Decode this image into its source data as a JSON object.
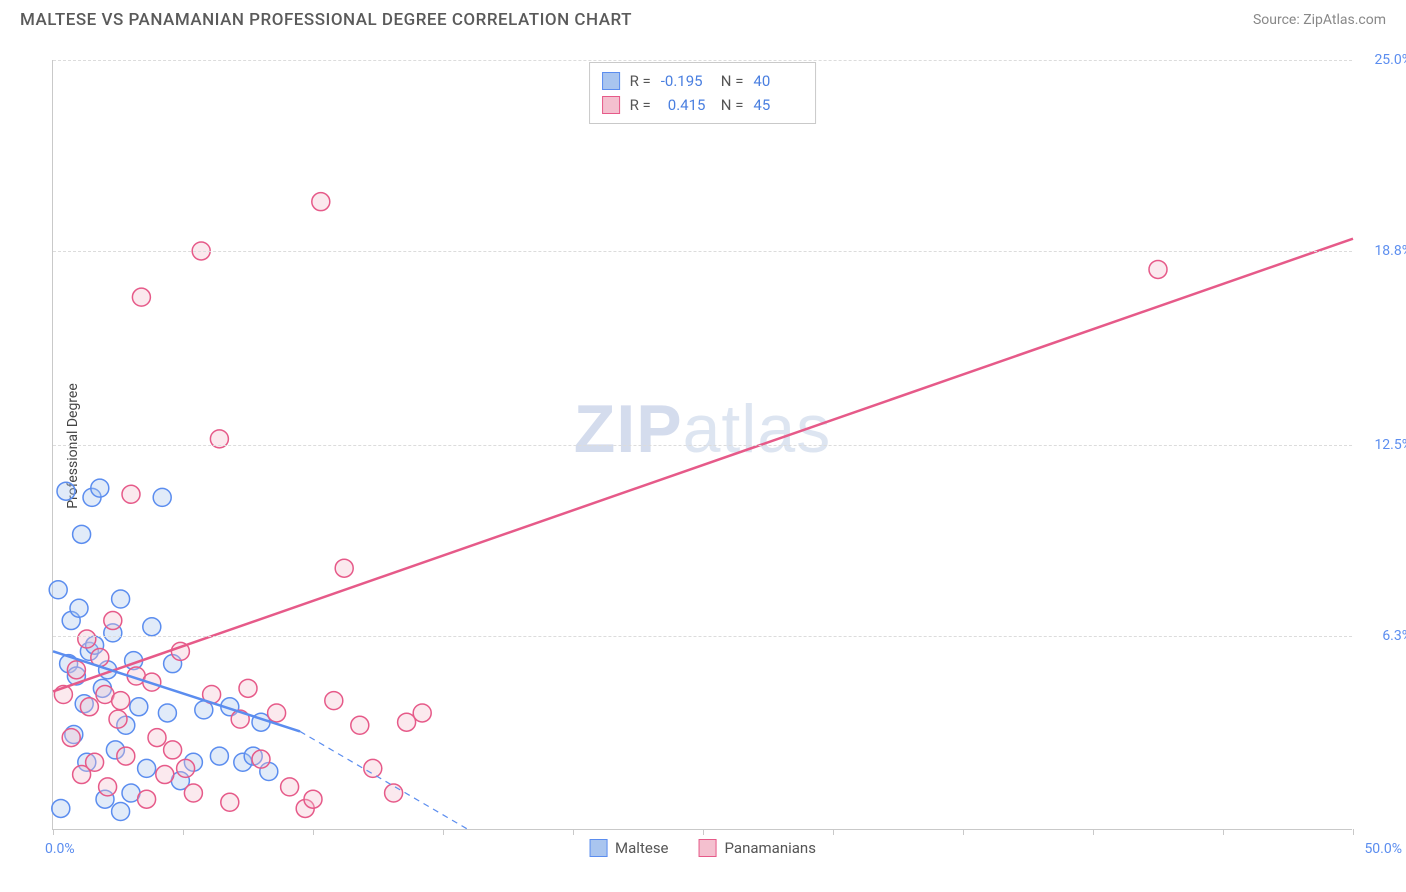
{
  "header": {
    "title": "MALTESE VS PANAMANIAN PROFESSIONAL DEGREE CORRELATION CHART",
    "source": "Source: ZipAtlas.com"
  },
  "chart": {
    "type": "scatter",
    "ylabel": "Professional Degree",
    "xlim": [
      0,
      50
    ],
    "ylim": [
      0,
      25
    ],
    "xtick_step": 5,
    "yticks": [
      6.3,
      12.5,
      18.8,
      25.0
    ],
    "ytick_labels": [
      "6.3%",
      "12.5%",
      "18.8%",
      "25.0%"
    ],
    "x_origin_label": "0.0%",
    "x_max_label": "50.0%",
    "grid_color": "#dcdcdc",
    "background_color": "#ffffff",
    "axis_color": "#c9c9c9",
    "tick_label_color": "#5b8def",
    "title_fontsize": 17,
    "label_fontsize": 14,
    "marker_radius": 9,
    "marker_stroke_width": 1.5,
    "marker_fill_opacity": 0.35,
    "trend_line_width": 2.5,
    "series": {
      "maltese": {
        "label": "Maltese",
        "fill": "#a9c5ef",
        "stroke": "#5b8def",
        "points": [
          [
            0.2,
            7.8
          ],
          [
            0.3,
            0.7
          ],
          [
            0.5,
            11.0
          ],
          [
            0.6,
            5.4
          ],
          [
            0.7,
            6.8
          ],
          [
            0.8,
            3.1
          ],
          [
            0.9,
            5.0
          ],
          [
            1.0,
            7.2
          ],
          [
            1.1,
            9.6
          ],
          [
            1.2,
            4.1
          ],
          [
            1.3,
            2.2
          ],
          [
            1.4,
            5.8
          ],
          [
            1.5,
            10.8
          ],
          [
            1.6,
            6.0
          ],
          [
            1.8,
            11.1
          ],
          [
            1.9,
            4.6
          ],
          [
            2.0,
            1.0
          ],
          [
            2.1,
            5.2
          ],
          [
            2.3,
            6.4
          ],
          [
            2.4,
            2.6
          ],
          [
            2.6,
            7.5
          ],
          [
            2.6,
            0.6
          ],
          [
            2.8,
            3.4
          ],
          [
            3.0,
            1.2
          ],
          [
            3.1,
            5.5
          ],
          [
            3.3,
            4.0
          ],
          [
            3.6,
            2.0
          ],
          [
            3.8,
            6.6
          ],
          [
            4.2,
            10.8
          ],
          [
            4.4,
            3.8
          ],
          [
            4.6,
            5.4
          ],
          [
            4.9,
            1.6
          ],
          [
            5.4,
            2.2
          ],
          [
            5.8,
            3.9
          ],
          [
            6.4,
            2.4
          ],
          [
            6.8,
            4.0
          ],
          [
            7.3,
            2.2
          ],
          [
            7.7,
            2.4
          ],
          [
            8.0,
            3.5
          ],
          [
            8.3,
            1.9
          ]
        ],
        "trend": {
          "x1": 0,
          "y1": 5.8,
          "x2": 9.5,
          "y2": 3.2
        },
        "extrapolate": {
          "x1": 9.5,
          "y1": 3.2,
          "x2": 16.0,
          "y2": 0.0
        },
        "dash": "6,5"
      },
      "panamanians": {
        "label": "Panamanians",
        "fill": "#f4c0cf",
        "stroke": "#e65a89",
        "points": [
          [
            0.4,
            4.4
          ],
          [
            0.7,
            3.0
          ],
          [
            0.9,
            5.2
          ],
          [
            1.1,
            1.8
          ],
          [
            1.3,
            6.2
          ],
          [
            1.4,
            4.0
          ],
          [
            1.6,
            2.2
          ],
          [
            1.8,
            5.6
          ],
          [
            2.0,
            4.4
          ],
          [
            2.1,
            1.4
          ],
          [
            2.3,
            6.8
          ],
          [
            2.5,
            3.6
          ],
          [
            2.6,
            4.2
          ],
          [
            2.8,
            2.4
          ],
          [
            3.0,
            10.9
          ],
          [
            3.2,
            5.0
          ],
          [
            3.4,
            17.3
          ],
          [
            3.6,
            1.0
          ],
          [
            3.8,
            4.8
          ],
          [
            4.0,
            3.0
          ],
          [
            4.3,
            1.8
          ],
          [
            4.6,
            2.6
          ],
          [
            4.9,
            5.8
          ],
          [
            5.1,
            2.0
          ],
          [
            5.4,
            1.2
          ],
          [
            5.7,
            18.8
          ],
          [
            6.1,
            4.4
          ],
          [
            6.4,
            12.7
          ],
          [
            6.8,
            0.9
          ],
          [
            7.2,
            3.6
          ],
          [
            7.5,
            4.6
          ],
          [
            8.0,
            2.3
          ],
          [
            8.6,
            3.8
          ],
          [
            9.1,
            1.4
          ],
          [
            9.7,
            0.7
          ],
          [
            10.3,
            20.4
          ],
          [
            10.8,
            4.2
          ],
          [
            11.2,
            8.5
          ],
          [
            11.8,
            3.4
          ],
          [
            12.3,
            2.0
          ],
          [
            13.1,
            1.2
          ],
          [
            13.6,
            3.5
          ],
          [
            14.2,
            3.8
          ],
          [
            42.5,
            18.2
          ],
          [
            10.0,
            1.0
          ]
        ],
        "trend": {
          "x1": 0,
          "y1": 4.5,
          "x2": 50,
          "y2": 19.2
        }
      }
    },
    "stats": [
      {
        "series": "maltese",
        "R": "-0.195",
        "N": "40"
      },
      {
        "series": "panamanians",
        "R": "0.415",
        "N": "45"
      }
    ],
    "watermark": {
      "zip": "ZIP",
      "atlas": "atlas"
    }
  }
}
